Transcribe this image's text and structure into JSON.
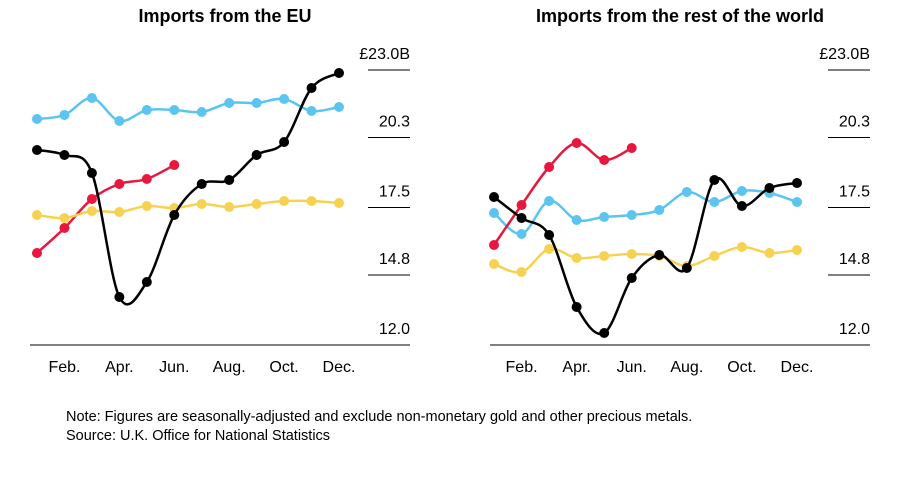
{
  "chart_data": [
    {
      "type": "line",
      "title": "Imports from the EU",
      "categories": [
        null,
        "Feb.",
        null,
        "Apr.",
        null,
        "Jun.",
        null,
        "Aug.",
        null,
        "Oct.",
        null,
        "Dec."
      ],
      "series": [
        {
          "color": "#5bc4f0",
          "values": [
            21.04,
            21.2,
            21.88,
            20.96,
            21.4,
            21.4,
            21.32,
            21.68,
            21.68,
            21.84,
            21.36,
            21.52
          ]
        },
        {
          "color": "#e8173e",
          "values": [
            15.68,
            16.68,
            17.84,
            18.44,
            18.64,
            19.2,
            null,
            null,
            null,
            null,
            null,
            null
          ]
        },
        {
          "color": "#f7d250",
          "values": [
            17.2,
            17.08,
            17.36,
            17.32,
            17.56,
            17.48,
            17.64,
            17.52,
            17.64,
            17.76,
            17.76,
            17.68
          ]
        },
        {
          "color": "#000000",
          "values": [
            19.8,
            19.6,
            18.88,
            13.92,
            14.52,
            17.2,
            18.44,
            18.6,
            19.6,
            20.12,
            22.28,
            22.88
          ]
        }
      ],
      "ylim": [
        12,
        23
      ],
      "yticks": [
        {
          "value": 12,
          "label": "12.0"
        },
        14.8,
        17.5,
        20.3,
        {
          "value": 23,
          "label": "£23.0B"
        }
      ]
    },
    {
      "type": "line",
      "title": "Imports from the rest of the world",
      "categories": [
        null,
        "Feb.",
        null,
        "Apr.",
        null,
        "Jun.",
        null,
        "Aug.",
        null,
        "Oct.",
        null,
        "Dec."
      ],
      "series": [
        {
          "color": "#5bc4f0",
          "values": [
            17.28,
            16.44,
            17.76,
            17.0,
            17.12,
            17.2,
            17.4,
            18.12,
            17.72,
            18.16,
            18.08,
            17.72
          ]
        },
        {
          "color": "#e8173e",
          "values": [
            16.0,
            17.6,
            19.12,
            20.08,
            19.4,
            19.88,
            null,
            null,
            null,
            null,
            null,
            null
          ]
        },
        {
          "color": "#f7d250",
          "values": [
            15.24,
            14.92,
            15.84,
            15.48,
            15.56,
            15.64,
            15.56,
            15.16,
            15.56,
            15.92,
            15.68,
            15.8
          ]
        },
        {
          "color": "#000000",
          "values": [
            17.92,
            17.08,
            16.4,
            13.52,
            12.48,
            14.68,
            15.6,
            15.08,
            18.6,
            17.56,
            18.28,
            18.48
          ]
        }
      ],
      "ylim": [
        12,
        23
      ],
      "yticks": [
        {
          "value": 12,
          "label": "12.0"
        },
        14.8,
        17.5,
        20.3,
        {
          "value": 23,
          "label": "£23.0B"
        }
      ]
    }
  ],
  "note": "Note: Figures are seasonally-adjusted and exclude non-monetary gold and other precious metals.",
  "source": "Source: U.K. Office for National Statistics"
}
